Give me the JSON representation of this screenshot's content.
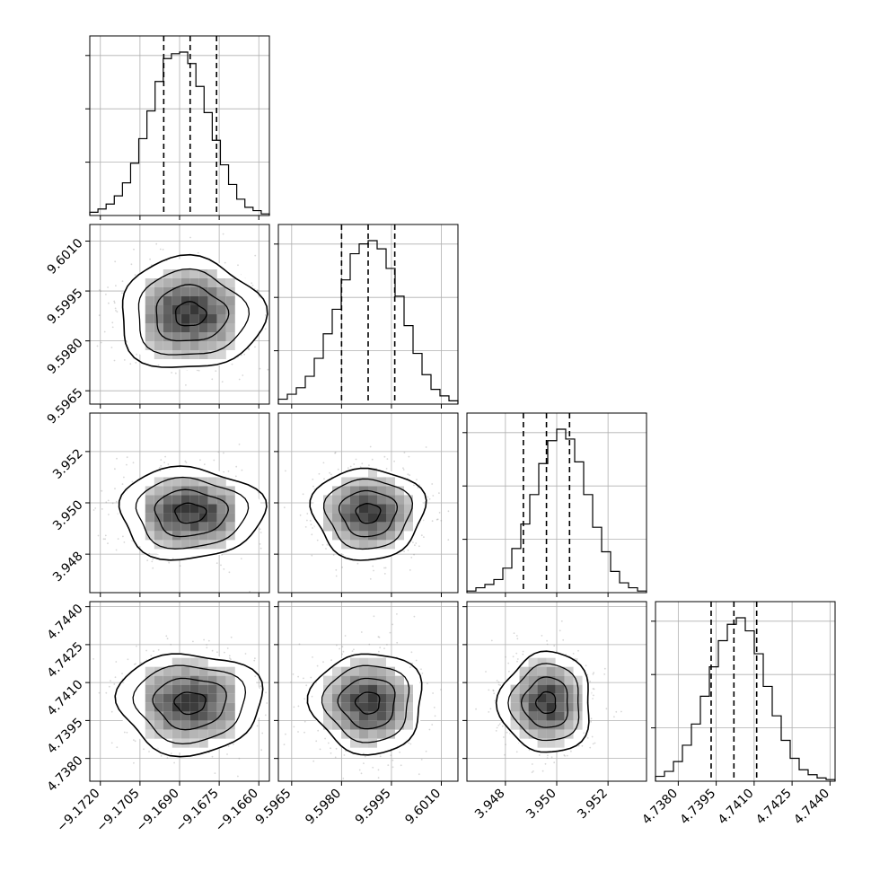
{
  "chart_data": {
    "type": "corner",
    "title": "",
    "xlabel": "",
    "ylabel": "",
    "grid": true,
    "colors": {
      "line": "#000000",
      "grid": "#b0b0b0",
      "scatter": "#8c8c8c",
      "hist2d": "#404040",
      "background": "#ffffff"
    },
    "parameters": [
      {
        "center": -9.1686,
        "sigma": 0.0013,
        "range": [
          -9.1724,
          -9.1656
        ],
        "ticks": [
          -9.172,
          -9.1705,
          -9.169,
          -9.1675,
          -9.166
        ],
        "tick_labels": [
          "−9.1720",
          "−9.1705",
          "−9.1690",
          "−9.1675",
          "−9.1660"
        ],
        "quantiles": [
          -9.1696,
          -9.1686,
          -9.1676
        ],
        "hist": [
          0.02,
          0.04,
          0.07,
          0.12,
          0.2,
          0.32,
          0.47,
          0.64,
          0.82,
          0.96,
          0.99,
          1.0,
          0.93,
          0.79,
          0.63,
          0.46,
          0.31,
          0.19,
          0.1,
          0.05,
          0.03,
          0.01
        ]
      },
      {
        "center": 9.5988,
        "sigma": 0.0008,
        "range": [
          9.5961,
          9.6015
        ],
        "ticks": [
          9.5965,
          9.598,
          9.5995,
          9.601
        ],
        "tick_labels": [
          "9.5965",
          "9.5980",
          "9.5995",
          "9.6010"
        ],
        "quantiles": [
          9.598,
          9.5988,
          9.5996
        ],
        "hist": [
          0.03,
          0.06,
          0.1,
          0.17,
          0.28,
          0.43,
          0.58,
          0.76,
          0.92,
          0.98,
          1.0,
          0.95,
          0.83,
          0.66,
          0.48,
          0.31,
          0.18,
          0.09,
          0.05,
          0.02
        ]
      },
      {
        "center": 3.9496,
        "sigma": 0.00085,
        "range": [
          3.9465,
          3.9535
        ],
        "ticks": [
          3.948,
          3.95,
          3.952
        ],
        "tick_labels": [
          "3.948",
          "3.950",
          "3.952"
        ],
        "quantiles": [
          3.9487,
          3.9496,
          3.9505
        ],
        "hist": [
          0.01,
          0.03,
          0.05,
          0.08,
          0.15,
          0.27,
          0.42,
          0.6,
          0.79,
          0.93,
          1.0,
          0.94,
          0.8,
          0.6,
          0.4,
          0.25,
          0.13,
          0.06,
          0.03,
          0.01
        ]
      },
      {
        "center": 4.7402,
        "sigma": 0.00095,
        "range": [
          4.7371,
          4.7442
        ],
        "ticks": [
          4.738,
          4.7395,
          4.741,
          4.7425,
          4.744
        ],
        "tick_labels": [
          "4.7380",
          "4.7395",
          "4.7410",
          "4.7425",
          "4.7440"
        ],
        "quantiles": [
          4.7393,
          4.7402,
          4.7411
        ],
        "hist": [
          0.03,
          0.06,
          0.12,
          0.22,
          0.35,
          0.52,
          0.7,
          0.86,
          0.96,
          1.0,
          0.92,
          0.78,
          0.58,
          0.4,
          0.25,
          0.14,
          0.07,
          0.04,
          0.02,
          0.01
        ]
      }
    ]
  }
}
